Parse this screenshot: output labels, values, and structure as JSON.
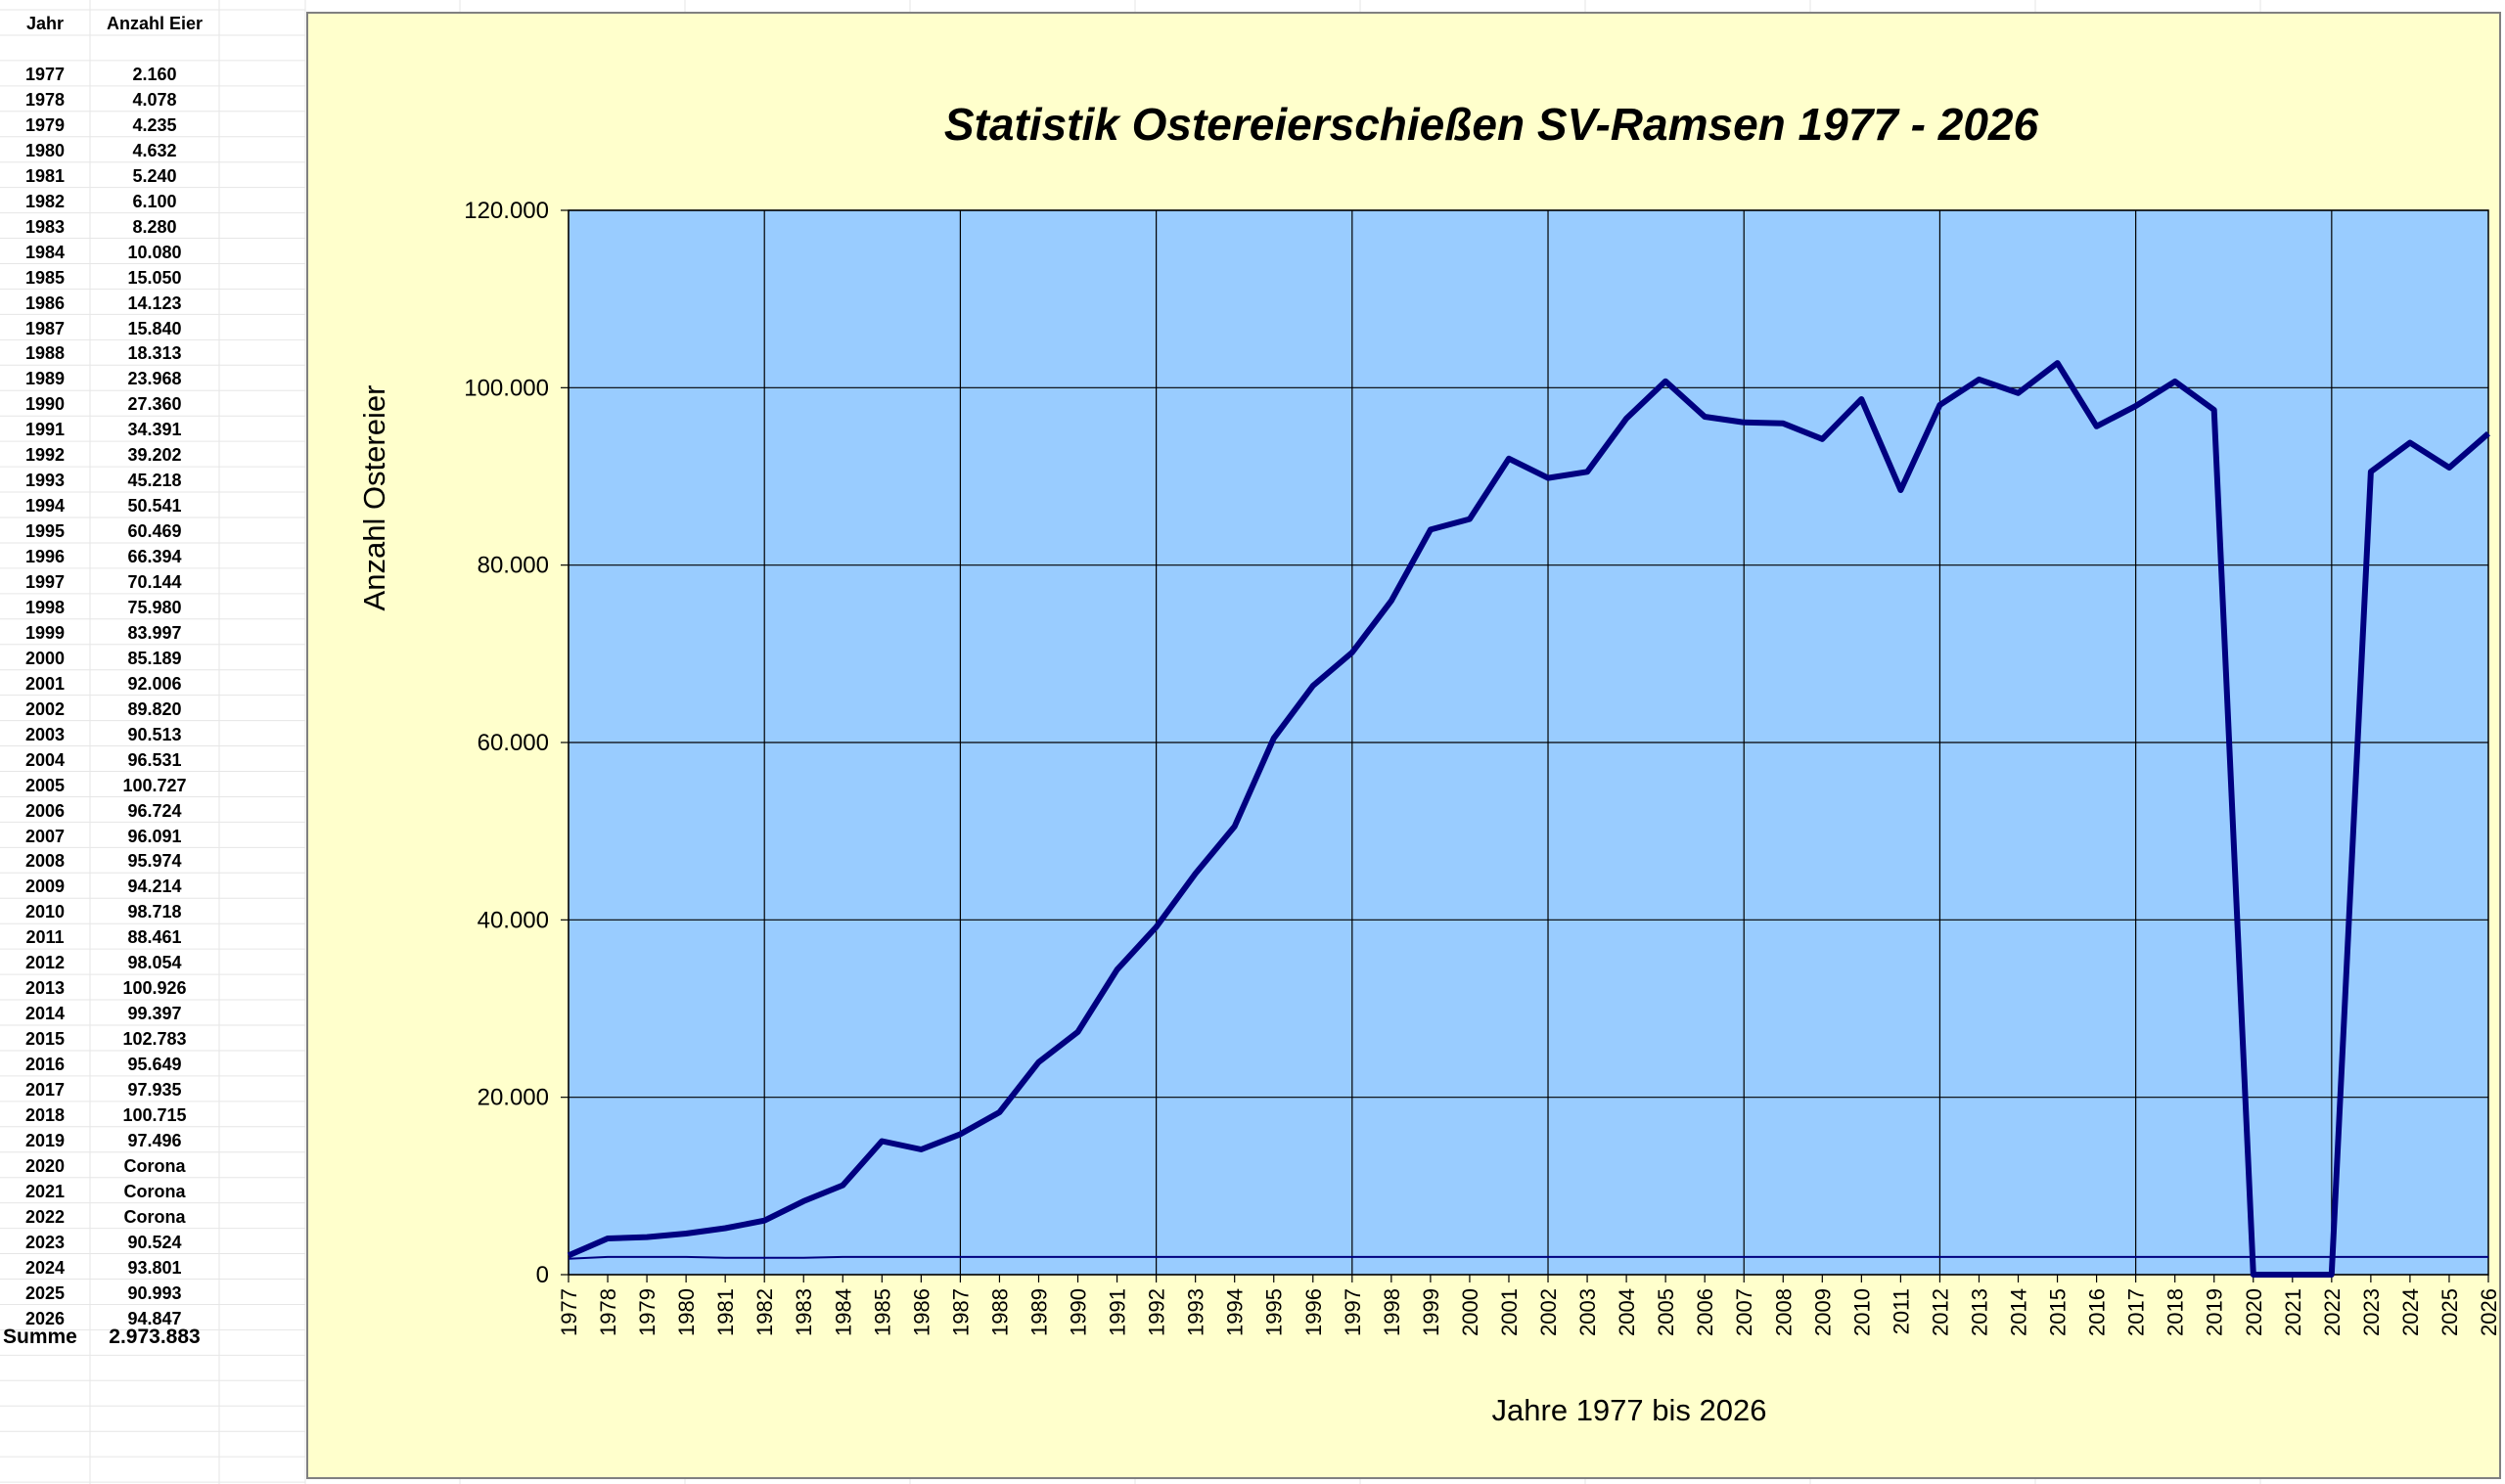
{
  "table": {
    "header_year": "Jahr",
    "header_value": "Anzahl Eier",
    "rows": [
      {
        "year": "1977",
        "value": "2.160"
      },
      {
        "year": "1978",
        "value": "4.078"
      },
      {
        "year": "1979",
        "value": "4.235"
      },
      {
        "year": "1980",
        "value": "4.632"
      },
      {
        "year": "1981",
        "value": "5.240"
      },
      {
        "year": "1982",
        "value": "6.100"
      },
      {
        "year": "1983",
        "value": "8.280"
      },
      {
        "year": "1984",
        "value": "10.080"
      },
      {
        "year": "1985",
        "value": "15.050"
      },
      {
        "year": "1986",
        "value": "14.123"
      },
      {
        "year": "1987",
        "value": "15.840"
      },
      {
        "year": "1988",
        "value": "18.313"
      },
      {
        "year": "1989",
        "value": "23.968"
      },
      {
        "year": "1990",
        "value": "27.360"
      },
      {
        "year": "1991",
        "value": "34.391"
      },
      {
        "year": "1992",
        "value": "39.202"
      },
      {
        "year": "1993",
        "value": "45.218"
      },
      {
        "year": "1994",
        "value": "50.541"
      },
      {
        "year": "1995",
        "value": "60.469"
      },
      {
        "year": "1996",
        "value": "66.394"
      },
      {
        "year": "1997",
        "value": "70.144"
      },
      {
        "year": "1998",
        "value": "75.980"
      },
      {
        "year": "1999",
        "value": "83.997"
      },
      {
        "year": "2000",
        "value": "85.189"
      },
      {
        "year": "2001",
        "value": "92.006"
      },
      {
        "year": "2002",
        "value": "89.820"
      },
      {
        "year": "2003",
        "value": "90.513"
      },
      {
        "year": "2004",
        "value": "96.531"
      },
      {
        "year": "2005",
        "value": "100.727"
      },
      {
        "year": "2006",
        "value": "96.724"
      },
      {
        "year": "2007",
        "value": "96.091"
      },
      {
        "year": "2008",
        "value": "95.974"
      },
      {
        "year": "2009",
        "value": "94.214"
      },
      {
        "year": "2010",
        "value": "98.718"
      },
      {
        "year": "2011",
        "value": "88.461"
      },
      {
        "year": "2012",
        "value": "98.054"
      },
      {
        "year": "2013",
        "value": "100.926"
      },
      {
        "year": "2014",
        "value": "99.397"
      },
      {
        "year": "2015",
        "value": "102.783"
      },
      {
        "year": "2016",
        "value": "95.649"
      },
      {
        "year": "2017",
        "value": "97.935"
      },
      {
        "year": "2018",
        "value": "100.715"
      },
      {
        "year": "2019",
        "value": "97.496"
      },
      {
        "year": "2020",
        "value": "Corona"
      },
      {
        "year": "2021",
        "value": "Corona"
      },
      {
        "year": "2022",
        "value": "Corona"
      },
      {
        "year": "2023",
        "value": "90.524"
      },
      {
        "year": "2024",
        "value": "93.801"
      },
      {
        "year": "2025",
        "value": "90.993"
      },
      {
        "year": "2026",
        "value": "94.847"
      }
    ],
    "sum_label": "Summe",
    "sum_value": "2.973.883"
  },
  "colors": {
    "chart_bg": "#ffffcc",
    "plot_bg": "#99ccff",
    "line": "#000080",
    "grid": "#000000"
  },
  "chart_data": {
    "type": "line",
    "title": "Statistik Ostereierschießen SV-Ramsen 1977 - 2026",
    "xlabel": "Jahre 1977 bis 2026",
    "ylabel": "Anzahl Ostereier",
    "ylim": [
      0,
      120000
    ],
    "yticks": [
      0,
      20000,
      40000,
      60000,
      80000,
      100000,
      120000
    ],
    "ytick_labels": [
      "0",
      "20.000",
      "40.000",
      "60.000",
      "80.000",
      "100.000",
      "120.000"
    ],
    "grid": true,
    "legend": "none",
    "x": [
      "1977",
      "1978",
      "1979",
      "1980",
      "1981",
      "1982",
      "1983",
      "1984",
      "1985",
      "1986",
      "1987",
      "1988",
      "1989",
      "1990",
      "1991",
      "1992",
      "1993",
      "1994",
      "1995",
      "1996",
      "1997",
      "1998",
      "1999",
      "2000",
      "2001",
      "2002",
      "2003",
      "2004",
      "2005",
      "2006",
      "2007",
      "2008",
      "2009",
      "2010",
      "2011",
      "2012",
      "2013",
      "2014",
      "2015",
      "2016",
      "2017",
      "2018",
      "2019",
      "2020",
      "2021",
      "2022",
      "2023",
      "2024",
      "2025",
      "2026"
    ],
    "series": [
      {
        "values": [
          2160,
          4078,
          4235,
          4632,
          5240,
          6100,
          8280,
          10080,
          15050,
          14123,
          15840,
          18313,
          23968,
          27360,
          34391,
          39202,
          45218,
          50541,
          60469,
          66394,
          70144,
          75980,
          83997,
          85189,
          92006,
          89820,
          90513,
          96531,
          100727,
          96724,
          96091,
          95974,
          94214,
          98718,
          88461,
          98054,
          100926,
          99397,
          102783,
          95649,
          97935,
          100715,
          97496,
          0,
          0,
          0,
          90524,
          93801,
          90993,
          94847
        ],
        "stroke_width": "thick"
      },
      {
        "values": [
          1800,
          2000,
          2000,
          2000,
          1900,
          1900,
          1900,
          2000,
          2000,
          2000,
          2000,
          2000,
          2000,
          2000,
          2000,
          2000,
          2000,
          2000,
          2000,
          2000,
          2000,
          2000,
          2000,
          2000,
          2000,
          2000,
          2000,
          2000,
          2000,
          2000,
          2000,
          2000,
          2000,
          2000,
          2000,
          2000,
          2000,
          2000,
          2000,
          2000,
          2000,
          2000,
          2000,
          2000,
          2000,
          2000,
          2000,
          2000,
          2000,
          2000
        ],
        "stroke_width": "thin"
      }
    ]
  }
}
